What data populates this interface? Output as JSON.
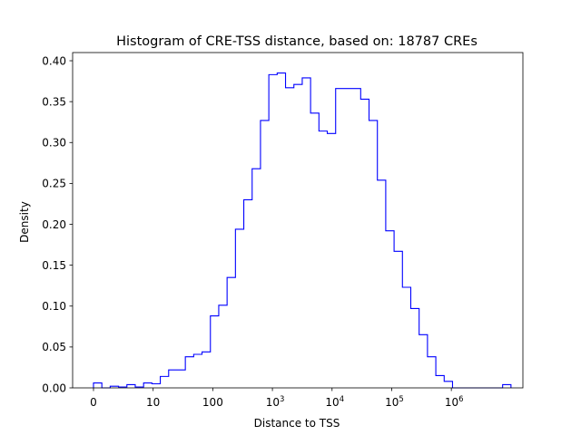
{
  "chart_data": {
    "type": "histogram",
    "title": "Histogram of CRE-TSS distance, based on: 18787 CREs",
    "xlabel": "Distance to TSS",
    "ylabel": "Density",
    "x_scale": "symlog",
    "xlim": [
      -0.35,
      7.2
    ],
    "ylim": [
      0,
      0.41
    ],
    "x_ticks": [
      {
        "pos": 0,
        "label": "0"
      },
      {
        "pos": 1,
        "label": "10"
      },
      {
        "pos": 2,
        "label": "100"
      },
      {
        "pos": 3,
        "base": "10",
        "exp": "3"
      },
      {
        "pos": 4,
        "base": "10",
        "exp": "4"
      },
      {
        "pos": 5,
        "base": "10",
        "exp": "5"
      },
      {
        "pos": 6,
        "base": "10",
        "exp": "6"
      }
    ],
    "y_ticks": [
      {
        "value": 0.0,
        "label": "0.00"
      },
      {
        "value": 0.05,
        "label": "0.05"
      },
      {
        "value": 0.1,
        "label": "0.10"
      },
      {
        "value": 0.15,
        "label": "0.15"
      },
      {
        "value": 0.2,
        "label": "0.20"
      },
      {
        "value": 0.25,
        "label": "0.25"
      },
      {
        "value": 0.3,
        "label": "0.30"
      },
      {
        "value": 0.35,
        "label": "0.35"
      },
      {
        "value": 0.4,
        "label": "0.40"
      }
    ],
    "line_color": "#0000ff",
    "grid": false,
    "legend": "none",
    "bin_edges": [
      0,
      0.14,
      0.28,
      0.42,
      0.56,
      0.7,
      0.84,
      0.98,
      1.12,
      1.26,
      1.4,
      1.54,
      1.68,
      1.82,
      1.96,
      2.1,
      2.24,
      2.38,
      2.52,
      2.66,
      2.8,
      2.94,
      3.08,
      3.22,
      3.36,
      3.5,
      3.64,
      3.78,
      3.92,
      4.06,
      4.2,
      4.34,
      4.48,
      4.62,
      4.76,
      4.9,
      5.04,
      5.18,
      5.32,
      5.46,
      5.6,
      5.74,
      5.88,
      6.02,
      6.16,
      6.3,
      6.44,
      6.58,
      6.72,
      6.86,
      7.0
    ],
    "densities": [
      0.006,
      0.0,
      0.002,
      0.001,
      0.004,
      0.001,
      0.006,
      0.005,
      0.014,
      0.022,
      0.022,
      0.038,
      0.041,
      0.044,
      0.088,
      0.101,
      0.135,
      0.194,
      0.23,
      0.268,
      0.327,
      0.383,
      0.385,
      0.367,
      0.371,
      0.379,
      0.336,
      0.314,
      0.311,
      0.366,
      0.366,
      0.366,
      0.353,
      0.327,
      0.254,
      0.192,
      0.167,
      0.123,
      0.097,
      0.065,
      0.038,
      0.015,
      0.008,
      0.0,
      0.0,
      0.0,
      0.0,
      0.0,
      0.0,
      0.004
    ]
  }
}
